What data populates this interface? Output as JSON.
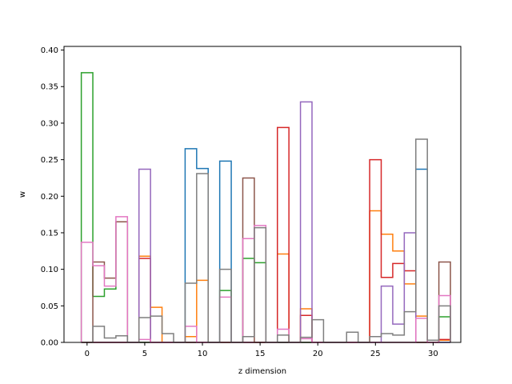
{
  "chart_data": {
    "type": "step",
    "xlabel": "z dimension",
    "ylabel": "w",
    "xlim": [
      -2,
      32.4
    ],
    "ylim": [
      0,
      0.405
    ],
    "x_ticks": [
      0,
      5,
      10,
      15,
      20,
      25,
      30
    ],
    "y_ticks": [
      0.0,
      0.05,
      0.1,
      0.15,
      0.2,
      0.25,
      0.3,
      0.35,
      0.4
    ],
    "x_tick_labels": [
      "0",
      "5",
      "10",
      "15",
      "20",
      "25",
      "30"
    ],
    "y_tick_labels": [
      "0.00",
      "0.05",
      "0.10",
      "0.15",
      "0.20",
      "0.25",
      "0.30",
      "0.35",
      "0.40"
    ],
    "grid": false,
    "series": [
      {
        "color": "#1f77b4",
        "values": [
          0.0,
          0.0,
          0.0,
          0.0,
          0.0,
          0.0,
          0.0,
          0.0,
          0.0,
          0.265,
          0.238,
          0.0,
          0.248,
          0.0,
          0.0,
          0.0,
          0.0,
          0.0,
          0.0,
          0.0,
          0.0,
          0.0,
          0.0,
          0.0,
          0.0,
          0.0,
          0.0,
          0.0,
          0.0,
          0.237,
          0.0,
          0.0
        ]
      },
      {
        "color": "#ff7f0e",
        "values": [
          0.0,
          0.0,
          0.0,
          0.0,
          0.0,
          0.118,
          0.048,
          0.0,
          0.0,
          0.008,
          0.085,
          0.0,
          0.0,
          0.0,
          0.0,
          0.0,
          0.0,
          0.121,
          0.0,
          0.046,
          0.0,
          0.0,
          0.0,
          0.0,
          0.0,
          0.18,
          0.148,
          0.125,
          0.08,
          0.036,
          0.0,
          0.003
        ]
      },
      {
        "color": "#2ca02c",
        "values": [
          0.369,
          0.063,
          0.073,
          0.165,
          0.0,
          0.0,
          0.0,
          0.0,
          0.0,
          0.0,
          0.0,
          0.0,
          0.071,
          0.0,
          0.115,
          0.109,
          0.0,
          0.0,
          0.0,
          0.0,
          0.0,
          0.0,
          0.0,
          0.0,
          0.0,
          0.0,
          0.0,
          0.0,
          0.0,
          0.0,
          0.0,
          0.035
        ]
      },
      {
        "color": "#d62728",
        "values": [
          0.0,
          0.0,
          0.0,
          0.0,
          0.0,
          0.115,
          0.0,
          0.0,
          0.0,
          0.0,
          0.0,
          0.0,
          0.0,
          0.0,
          0.0,
          0.0,
          0.0,
          0.294,
          0.0,
          0.037,
          0.0,
          0.0,
          0.0,
          0.0,
          0.0,
          0.25,
          0.089,
          0.108,
          0.098,
          0.0,
          0.0,
          0.004
        ]
      },
      {
        "color": "#9467bd",
        "values": [
          0.0,
          0.0,
          0.0,
          0.0,
          0.0,
          0.237,
          0.0,
          0.0,
          0.0,
          0.0,
          0.0,
          0.0,
          0.0,
          0.0,
          0.0,
          0.0,
          0.0,
          0.0,
          0.0,
          0.329,
          0.0,
          0.0,
          0.0,
          0.0,
          0.0,
          0.0,
          0.077,
          0.025,
          0.15,
          0.0,
          0.0,
          0.0
        ]
      },
      {
        "color": "#8c564b",
        "values": [
          0.0,
          0.11,
          0.088,
          0.165,
          0.0,
          0.0,
          0.0,
          0.0,
          0.0,
          0.0,
          0.0,
          0.0,
          0.0,
          0.0,
          0.225,
          0.0,
          0.0,
          0.0,
          0.0,
          0.0,
          0.0,
          0.0,
          0.0,
          0.0,
          0.0,
          0.0,
          0.0,
          0.0,
          0.0,
          0.0,
          0.0,
          0.11
        ]
      },
      {
        "color": "#e377c2",
        "values": [
          0.137,
          0.105,
          0.077,
          0.172,
          0.0,
          0.004,
          0.0,
          0.0,
          0.0,
          0.022,
          0.0,
          0.0,
          0.062,
          0.0,
          0.142,
          0.16,
          0.0,
          0.018,
          0.0,
          0.005,
          0.0,
          0.0,
          0.0,
          0.0,
          0.0,
          0.0,
          0.0,
          0.0,
          0.0,
          0.033,
          0.0,
          0.064
        ]
      },
      {
        "color": "#7f7f7f",
        "values": [
          0.0,
          0.022,
          0.006,
          0.009,
          0.0,
          0.034,
          0.036,
          0.012,
          0.0,
          0.081,
          0.231,
          0.0,
          0.1,
          0.0,
          0.008,
          0.157,
          0.0,
          0.01,
          0.0,
          0.007,
          0.031,
          0.0,
          0.0,
          0.014,
          0.0,
          0.008,
          0.012,
          0.01,
          0.042,
          0.278,
          0.003,
          0.05
        ]
      }
    ]
  }
}
